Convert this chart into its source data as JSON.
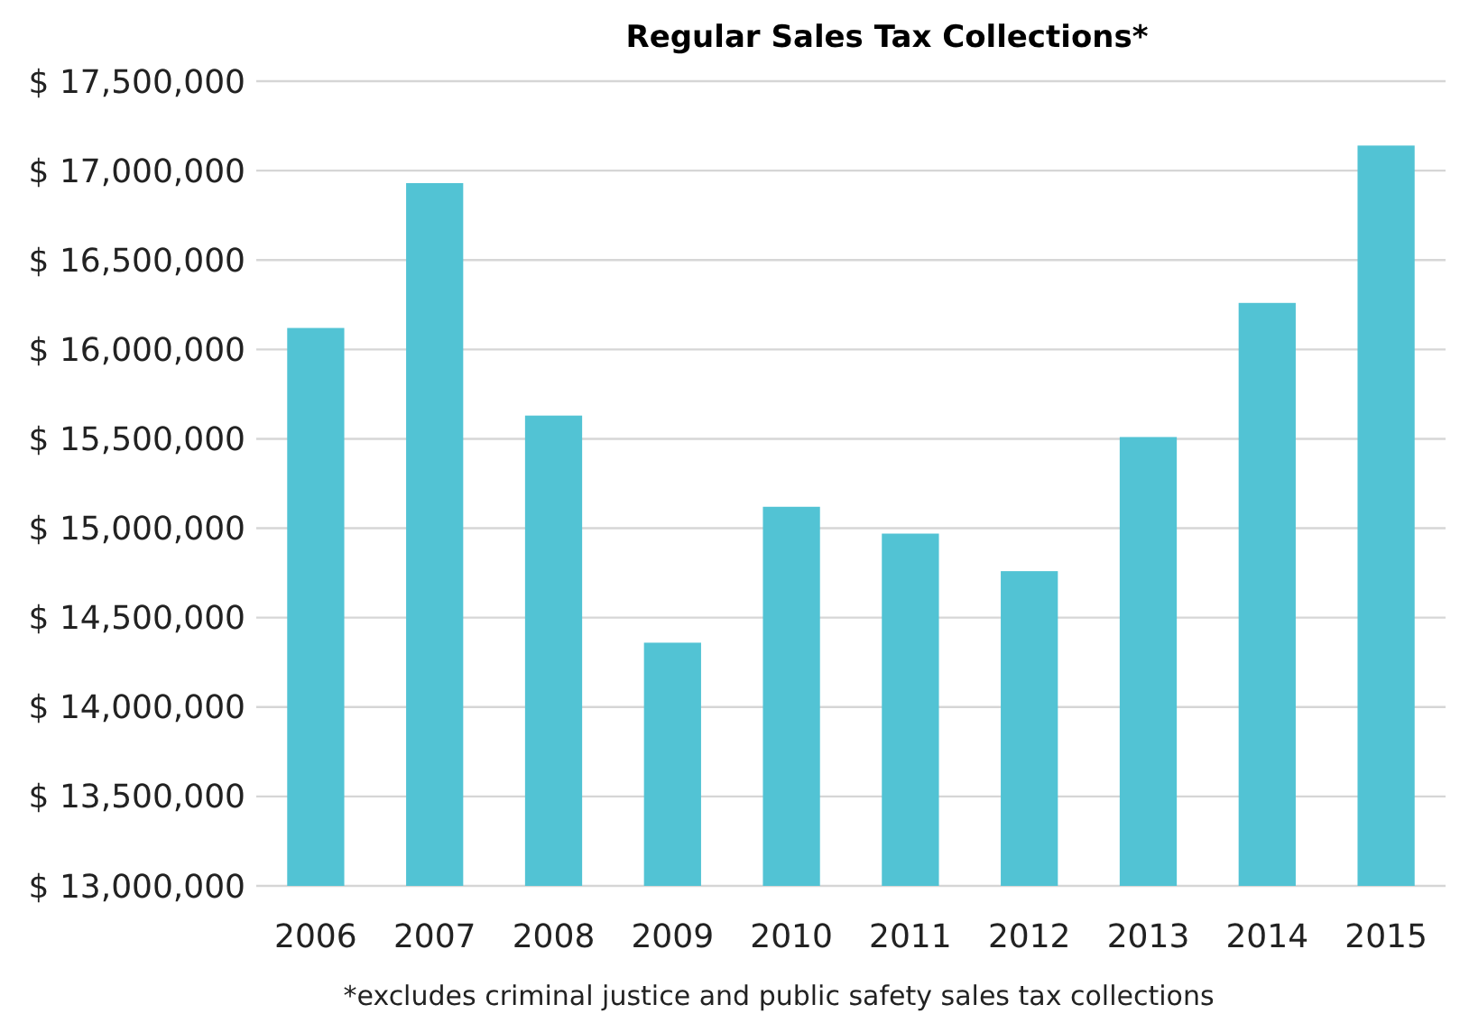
{
  "chart_data": {
    "type": "bar",
    "title": "Regular Sales Tax Collections*",
    "categories": [
      "2006",
      "2007",
      "2008",
      "2009",
      "2010",
      "2011",
      "2012",
      "2013",
      "2014",
      "2015"
    ],
    "values": [
      16120000,
      16930000,
      15630000,
      14360000,
      15120000,
      14970000,
      14760000,
      15510000,
      16260000,
      17140000
    ],
    "color": "#52c3d4",
    "ylim": [
      13000000,
      17500000
    ],
    "yticks": [
      {
        "value": 13000000,
        "label": "$ 13,000,000"
      },
      {
        "value": 13500000,
        "label": "$ 13,500,000"
      },
      {
        "value": 14000000,
        "label": "$ 14,000,000"
      },
      {
        "value": 14500000,
        "label": "$ 14,500,000"
      },
      {
        "value": 15000000,
        "label": "$ 15,000,000"
      },
      {
        "value": 15500000,
        "label": "$ 15,500,000"
      },
      {
        "value": 16000000,
        "label": "$ 16,000,000"
      },
      {
        "value": 16500000,
        "label": "$ 16,500,000"
      },
      {
        "value": 17000000,
        "label": "$ 17,000,000"
      },
      {
        "value": 17500000,
        "label": "$ 17,500,000"
      }
    ],
    "grid": "y",
    "annotations": [
      "*excludes criminal justice and public safety sales tax collections"
    ]
  }
}
